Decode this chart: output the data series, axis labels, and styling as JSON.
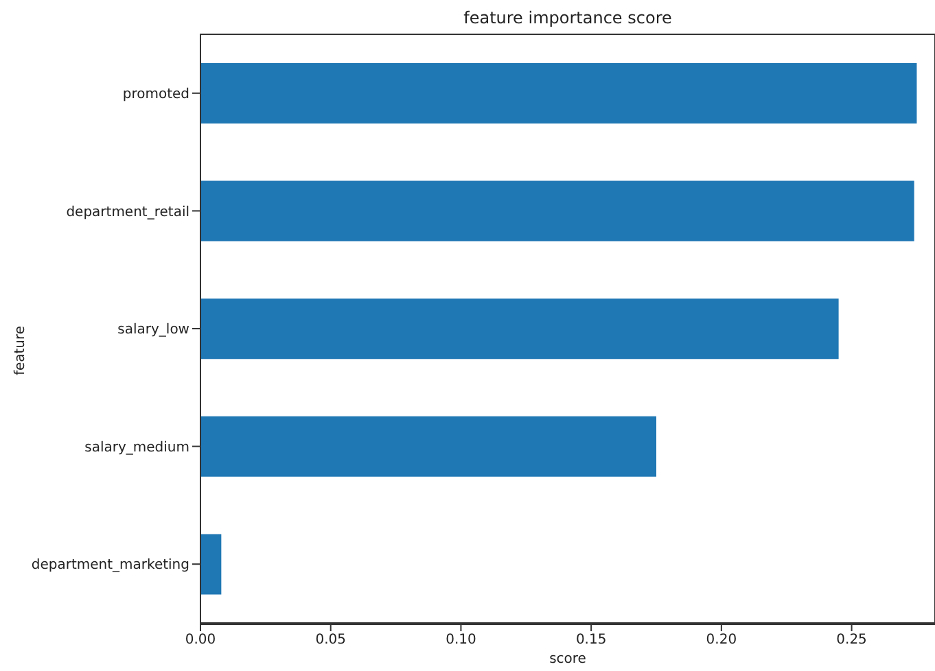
{
  "chart_data": {
    "type": "bar",
    "orientation": "horizontal",
    "title": "feature importance score",
    "xlabel": "score",
    "ylabel": "feature",
    "categories": [
      "promoted",
      "department_retail",
      "salary_low",
      "salary_medium",
      "department_marketing"
    ],
    "values": [
      0.275,
      0.274,
      0.245,
      0.175,
      0.008
    ],
    "color": "#1f77b4",
    "xlim": [
      0,
      0.282
    ],
    "xticks": [
      {
        "value": 0,
        "label": "0.00"
      },
      {
        "value": 0.05,
        "label": "0.05"
      },
      {
        "value": 0.1,
        "label": "0.10"
      },
      {
        "value": 0.15,
        "label": "0.15"
      },
      {
        "value": 0.2,
        "label": "0.20"
      },
      {
        "value": 0.25,
        "label": "0.25"
      }
    ],
    "grid": false,
    "legend": false
  }
}
